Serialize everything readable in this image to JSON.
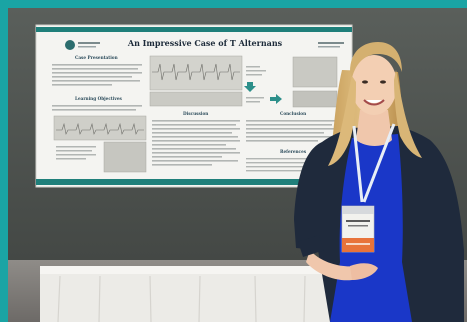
{
  "photo": {
    "description_free": true,
    "poster": {
      "title": "An Impressive Case of T Alternans",
      "sections": {
        "case_presentation": "Case Presentation",
        "learning_objectives": "Learning Objectives",
        "discussion": "Discussion",
        "conclusion": "Conclusion",
        "references": "References"
      }
    },
    "colors": {
      "frame_teal": "#1aa4a4",
      "wall": "#4e5350",
      "poster_band": "#1f7f7a",
      "blazer": "#1f2a3c",
      "dress": "#1a37c8",
      "lanyard": "#e8eef6",
      "table_cloth": "#ecebe7"
    }
  }
}
